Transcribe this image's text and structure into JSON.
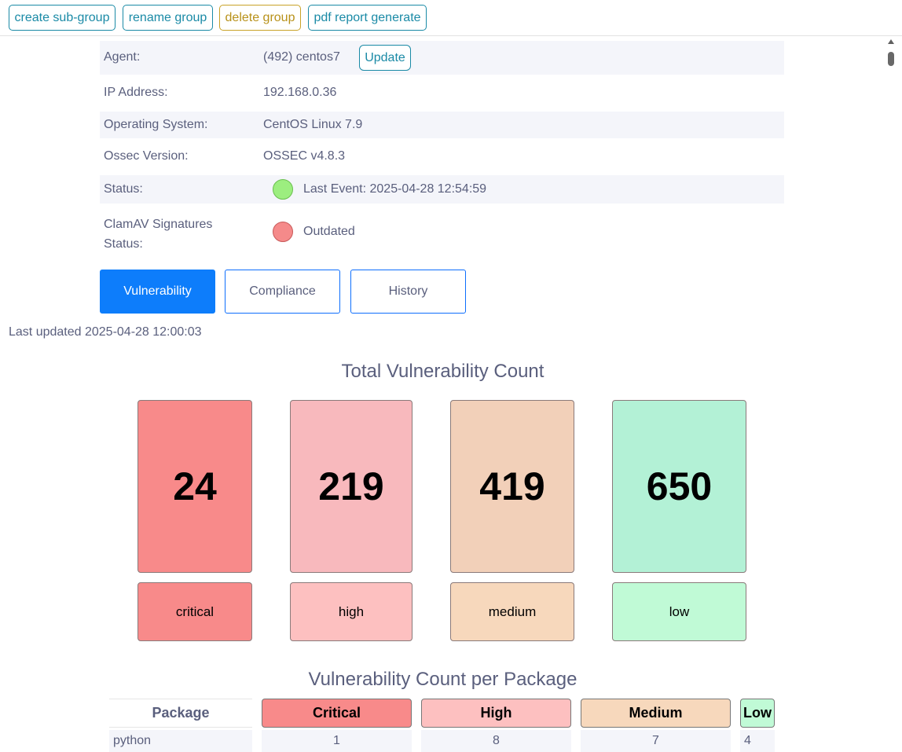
{
  "toolbar": {
    "create_subgroup": "create sub-group",
    "rename_group": "rename group",
    "delete_group": "delete group",
    "pdf_report": "pdf report generate"
  },
  "agent_info": {
    "agent_label": "Agent:",
    "agent_value": "(492) centos7",
    "update_label": "Update",
    "ip_label": "IP Address:",
    "ip_value": "192.168.0.36",
    "os_label": "Operating System:",
    "os_value": "CentOS Linux 7.9",
    "ossec_label": "Ossec Version:",
    "ossec_value": "OSSEC v4.8.3",
    "status_label": "Status:",
    "status_value": "Last Event: 2025-04-28 12:54:59",
    "status_color": "#9cee7f",
    "clamav_label_line1": "ClamAV Signatures",
    "clamav_label_line2": "Status:",
    "clamav_value": "Outdated",
    "clamav_color": "#f58a8a"
  },
  "tabs": [
    {
      "label": "Vulnerability",
      "active": true
    },
    {
      "label": "Compliance",
      "active": false
    },
    {
      "label": "History",
      "active": false
    }
  ],
  "last_updated": "Last updated 2025-04-28 12:00:03",
  "total_title": "Total Vulnerability Count",
  "totals": [
    {
      "count": "24",
      "label": "critical",
      "color": "#f88a8a",
      "label_color": "#f88a8a"
    },
    {
      "count": "219",
      "label": "high",
      "color": "#f8b9bd",
      "label_color": "#fdc0c0"
    },
    {
      "count": "419",
      "label": "medium",
      "color": "#f2d0b9",
      "label_color": "#f7d8bc"
    },
    {
      "count": "650",
      "label": "low",
      "color": "#b3f1d6",
      "label_color": "#c0fad6"
    }
  ],
  "package_title": "Vulnerability Count per Package",
  "package_table": {
    "headers": [
      "Package",
      "Critical",
      "High",
      "Medium",
      "Low"
    ],
    "rows": [
      [
        "python",
        "1",
        "8",
        "7",
        "4"
      ]
    ]
  }
}
